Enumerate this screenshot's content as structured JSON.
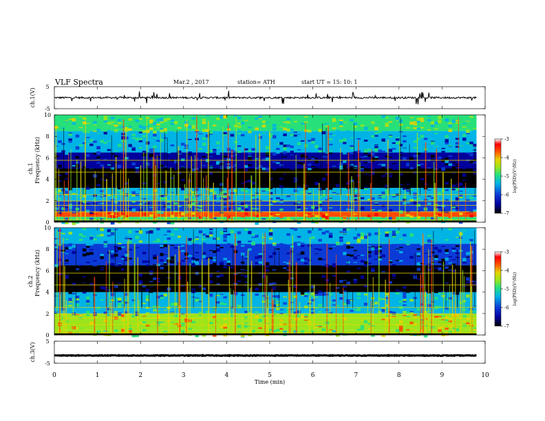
{
  "header": {
    "title": "VLF  Spectra",
    "date": "Mar.2  , 2017",
    "station": "station= ATH",
    "start": "start  UT  =    15: 10: 1"
  },
  "chart_data": [
    {
      "type": "line",
      "id": "ch1-waveform",
      "ylabel": "ch.1(V)",
      "ylim": [
        -5,
        5
      ],
      "yticks": [
        "5",
        "-5"
      ],
      "x_unit": "min",
      "xlim": [
        0,
        10
      ],
      "data_extent_min": 9.8,
      "baseline": 0,
      "amplitude_typical": 0.8,
      "spike_amplitude_max": 3
    },
    {
      "type": "heatmap",
      "id": "ch1-spectrogram",
      "ylabel": [
        "ch.1",
        "Frequency  (kHz)"
      ],
      "ylim": [
        0,
        10
      ],
      "yticks": [
        "0",
        "2",
        "4",
        "6",
        "8",
        "10"
      ],
      "xlim": [
        0,
        10
      ],
      "data_extent_min": 9.8,
      "z_label": "log(PSD)(V²/Hz)",
      "z_range": [
        -7,
        -3
      ],
      "colorbar_ticks": [
        "-3",
        "-4",
        "-5",
        "-6",
        "-7"
      ],
      "bands_khz": [
        {
          "f": [
            0.0,
            0.5
          ],
          "z": -5.2
        },
        {
          "f": [
            0.5,
            1.0
          ],
          "z": -3.6
        },
        {
          "f": [
            1.0,
            2.0
          ],
          "z": -5.7
        },
        {
          "f": [
            2.0,
            3.2
          ],
          "z": -5.4
        },
        {
          "f": [
            3.2,
            5.0
          ],
          "z": -6.9
        },
        {
          "f": [
            5.0,
            6.5
          ],
          "z": -6.3
        },
        {
          "f": [
            6.5,
            8.5
          ],
          "z": -5.6
        },
        {
          "f": [
            8.5,
            10.0
          ],
          "z": -4.8
        }
      ]
    },
    {
      "type": "heatmap",
      "id": "ch2-spectrogram",
      "ylabel": [
        "ch.2",
        "Frequency  (kHz)"
      ],
      "ylim": [
        0,
        10
      ],
      "yticks": [
        "0",
        "2",
        "4",
        "6",
        "8",
        "10"
      ],
      "xlim": [
        0,
        10
      ],
      "data_extent_min": 9.8,
      "z_label": "log(PSD)(V²/Hz)",
      "z_range": [
        -7,
        -3
      ],
      "colorbar_ticks": [
        "-3",
        "-4",
        "-5",
        "-6",
        "-7"
      ],
      "bands_khz": [
        {
          "f": [
            0.0,
            0.5
          ],
          "z": -4.6
        },
        {
          "f": [
            0.5,
            2.0
          ],
          "z": -4.4
        },
        {
          "f": [
            2.0,
            4.0
          ],
          "z": -5.3
        },
        {
          "f": [
            4.0,
            6.5
          ],
          "z": -6.7
        },
        {
          "f": [
            6.5,
            8.5
          ],
          "z": -6.1
        },
        {
          "f": [
            8.5,
            10.0
          ],
          "z": -5.4
        }
      ]
    },
    {
      "type": "line",
      "id": "ch3-waveform",
      "ylabel": "ch.3(V)",
      "ylim": [
        -5,
        5
      ],
      "yticks": [
        "5",
        "-5"
      ],
      "x_unit": "min",
      "xlim": [
        0,
        10
      ],
      "data_extent_min": 9.8,
      "baseline": -1.5,
      "amplitude_typical": 0.3
    }
  ],
  "x_axis": {
    "label": "Time  (min)",
    "ticks": [
      "0",
      "1",
      "2",
      "3",
      "4",
      "5",
      "6",
      "7",
      "8",
      "9",
      "10"
    ]
  },
  "colors": {
    "colormap": [
      "#000000",
      "#00009c",
      "#0b3ad6",
      "#00b4e6",
      "#27e07a",
      "#9be51c",
      "#e5d400",
      "#ff4a00",
      "#ff0000",
      "#ffffff"
    ]
  }
}
